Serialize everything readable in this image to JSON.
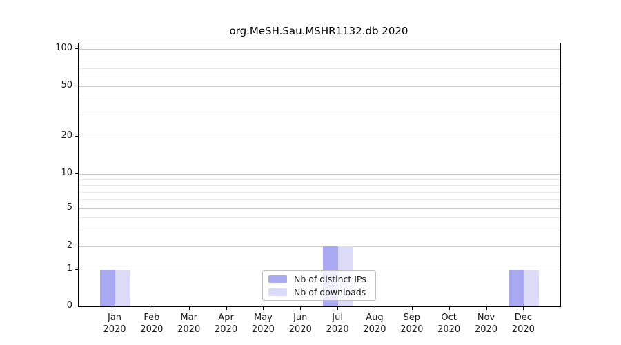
{
  "chart_data": {
    "type": "bar",
    "title": "org.MeSH.Sau.MSHR1132.db 2020",
    "categories": [
      "Jan 2020",
      "Feb 2020",
      "Mar 2020",
      "Apr 2020",
      "May 2020",
      "Jun 2020",
      "Jul 2020",
      "Aug 2020",
      "Sep 2020",
      "Oct 2020",
      "Nov 2020",
      "Dec 2020"
    ],
    "series": [
      {
        "name": "Nb of distinct IPs",
        "color": "#a9a9f2",
        "values": [
          1,
          0,
          0,
          0,
          0,
          0,
          2,
          0,
          0,
          0,
          0,
          1
        ]
      },
      {
        "name": "Nb of downloads",
        "color": "#dcdcf8",
        "values": [
          1,
          0,
          0,
          0,
          0,
          0,
          2,
          0,
          0,
          0,
          0,
          1
        ]
      }
    ],
    "xlabel": "",
    "ylabel": "",
    "ylim": [
      0,
      100
    ],
    "yticks": [
      0,
      1,
      2,
      5,
      10,
      20,
      50,
      100
    ],
    "minor_gridline_values": [
      3,
      4,
      6,
      7,
      8,
      9,
      30,
      40,
      60,
      70,
      80,
      90
    ],
    "scale": "log-like above 1 with zero baseline",
    "grid": true,
    "legend_position": "lower center",
    "colors": {
      "axis": "#000000",
      "tick_label": "#1a1a1a",
      "grid_major": "#c8c8c8",
      "grid_minor": "#e9e9e9",
      "bar_distinct_ips": "#a9a9f2",
      "bar_downloads": "#dcdcf8",
      "legend_border": "#c0c0c0"
    }
  }
}
